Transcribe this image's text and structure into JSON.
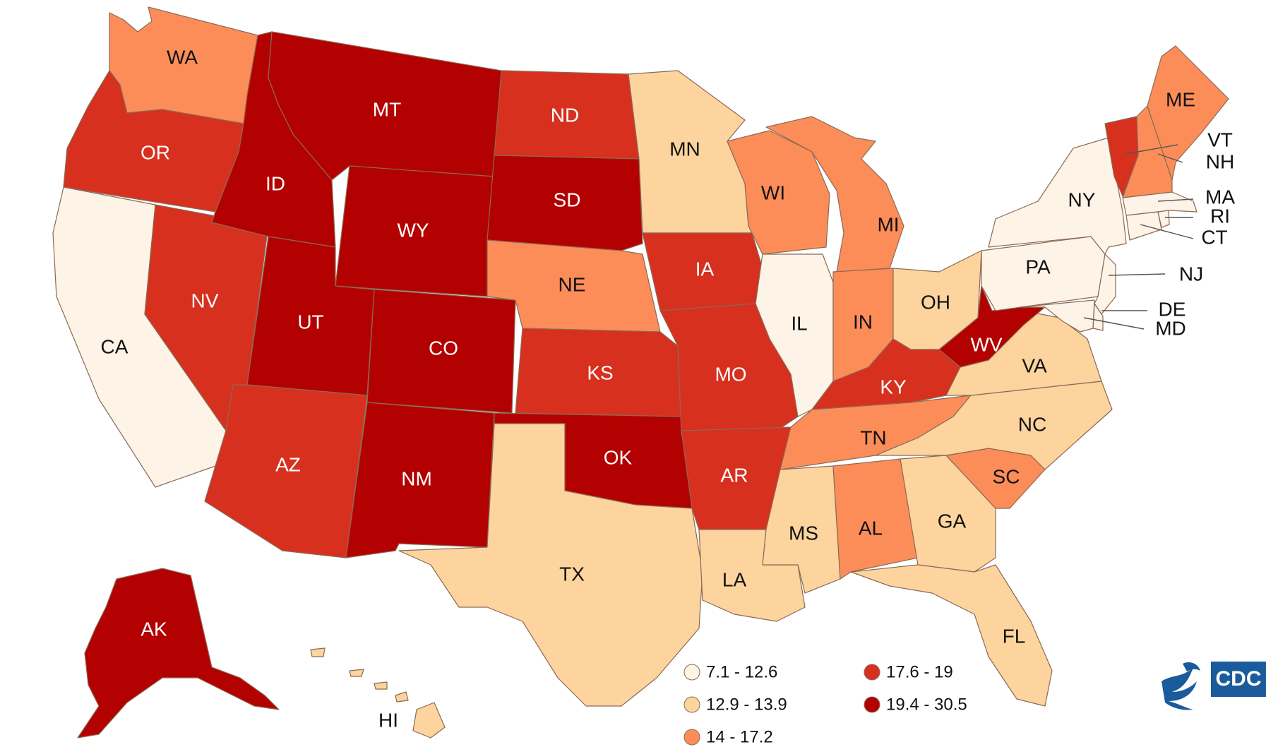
{
  "colors": {
    "class1": "#fdf3e6",
    "class2": "#fdd49e",
    "class3": "#fc8d59",
    "class4": "#d7301f",
    "class5": "#b30000",
    "border": "#8a6a55",
    "cdc_blue": "#1a5b9c"
  },
  "legend": [
    {
      "label": "7.1 - 12.6",
      "class": "class1"
    },
    {
      "label": "12.9 - 13.9",
      "class": "class2"
    },
    {
      "label": "14 - 17.2",
      "class": "class3"
    },
    {
      "label": "17.6 - 19",
      "class": "class4"
    },
    {
      "label": "19.4 - 30.5",
      "class": "class5"
    }
  ],
  "states": {
    "WA": {
      "class": "class3"
    },
    "OR": {
      "class": "class4"
    },
    "CA": {
      "class": "class1"
    },
    "ID": {
      "class": "class5"
    },
    "NV": {
      "class": "class4"
    },
    "MT": {
      "class": "class5"
    },
    "WY": {
      "class": "class5"
    },
    "UT": {
      "class": "class5"
    },
    "AZ": {
      "class": "class4"
    },
    "CO": {
      "class": "class5"
    },
    "NM": {
      "class": "class5"
    },
    "ND": {
      "class": "class4"
    },
    "SD": {
      "class": "class5"
    },
    "NE": {
      "class": "class3"
    },
    "KS": {
      "class": "class4"
    },
    "OK": {
      "class": "class5"
    },
    "TX": {
      "class": "class2"
    },
    "MN": {
      "class": "class2"
    },
    "IA": {
      "class": "class4"
    },
    "MO": {
      "class": "class4"
    },
    "AR": {
      "class": "class4"
    },
    "LA": {
      "class": "class2"
    },
    "WI": {
      "class": "class3"
    },
    "IL": {
      "class": "class1"
    },
    "MS": {
      "class": "class2"
    },
    "MI": {
      "class": "class3"
    },
    "IN": {
      "class": "class3"
    },
    "KY": {
      "class": "class4"
    },
    "TN": {
      "class": "class3"
    },
    "AL": {
      "class": "class3"
    },
    "OH": {
      "class": "class2"
    },
    "WV": {
      "class": "class5"
    },
    "VA": {
      "class": "class2"
    },
    "NC": {
      "class": "class2"
    },
    "SC": {
      "class": "class3"
    },
    "GA": {
      "class": "class2"
    },
    "FL": {
      "class": "class2"
    },
    "PA": {
      "class": "class1"
    },
    "NY": {
      "class": "class1"
    },
    "VT": {
      "class": "class4"
    },
    "NH": {
      "class": "class3"
    },
    "ME": {
      "class": "class3"
    },
    "MA": {
      "class": "class1"
    },
    "RI": {
      "class": "class1"
    },
    "CT": {
      "class": "class1"
    },
    "NJ": {
      "class": "class1"
    },
    "DE": {
      "class": "class1"
    },
    "MD": {
      "class": "class1"
    },
    "AK": {
      "class": "class5"
    },
    "HI": {
      "class": "class2"
    }
  },
  "labels": {
    "WA": "WA",
    "OR": "OR",
    "CA": "CA",
    "ID": "ID",
    "NV": "NV",
    "MT": "MT",
    "WY": "WY",
    "UT": "UT",
    "AZ": "AZ",
    "CO": "CO",
    "NM": "NM",
    "ND": "ND",
    "SD": "SD",
    "NE": "NE",
    "KS": "KS",
    "OK": "OK",
    "TX": "TX",
    "MN": "MN",
    "IA": "IA",
    "MO": "MO",
    "AR": "AR",
    "LA": "LA",
    "WI": "WI",
    "IL": "IL",
    "MS": "MS",
    "MI": "MI",
    "IN": "IN",
    "KY": "KY",
    "TN": "TN",
    "AL": "AL",
    "OH": "OH",
    "WV": "WV",
    "VA": "VA",
    "NC": "NC",
    "SC": "SC",
    "GA": "GA",
    "FL": "FL",
    "PA": "PA",
    "NY": "NY",
    "VT": "VT",
    "NH": "NH",
    "ME": "ME",
    "MA": "MA",
    "RI": "RI",
    "CT": "CT",
    "NJ": "NJ",
    "DE": "DE",
    "MD": "MD",
    "AK": "AK",
    "HI": "HI"
  },
  "logo": {
    "text": "CDC",
    "icon": "hhs-eagle-icon"
  }
}
